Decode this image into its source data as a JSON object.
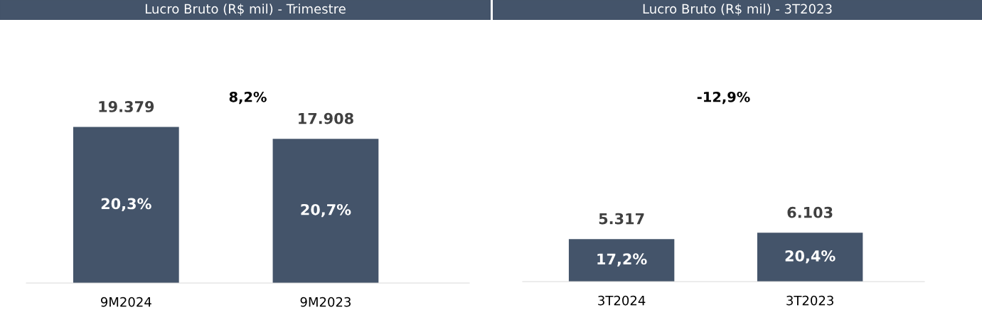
{
  "chart_data": [
    {
      "type": "bar",
      "title": "Lucro Bruto (R$ mil) - Trimestre",
      "categories": [
        "9M2024",
        "9M2023"
      ],
      "values": [
        19379,
        17908
      ],
      "value_labels": [
        "19.379",
        "17.908"
      ],
      "color": "#44546a",
      "annotations": [
        "8,2%",
        "20,3%",
        "20,7%"
      ]
    },
    {
      "type": "bar",
      "title": "Lucro Bruto (R$ mil) - 3T2023",
      "categories": [
        "3T2024",
        "3T2023"
      ],
      "values": [
        5317,
        6103
      ],
      "value_labels": [
        "5.317",
        "6.103"
      ],
      "color": "#44546a",
      "annotations": [
        "-12,9%",
        "17,2%",
        "20,4%"
      ]
    }
  ]
}
